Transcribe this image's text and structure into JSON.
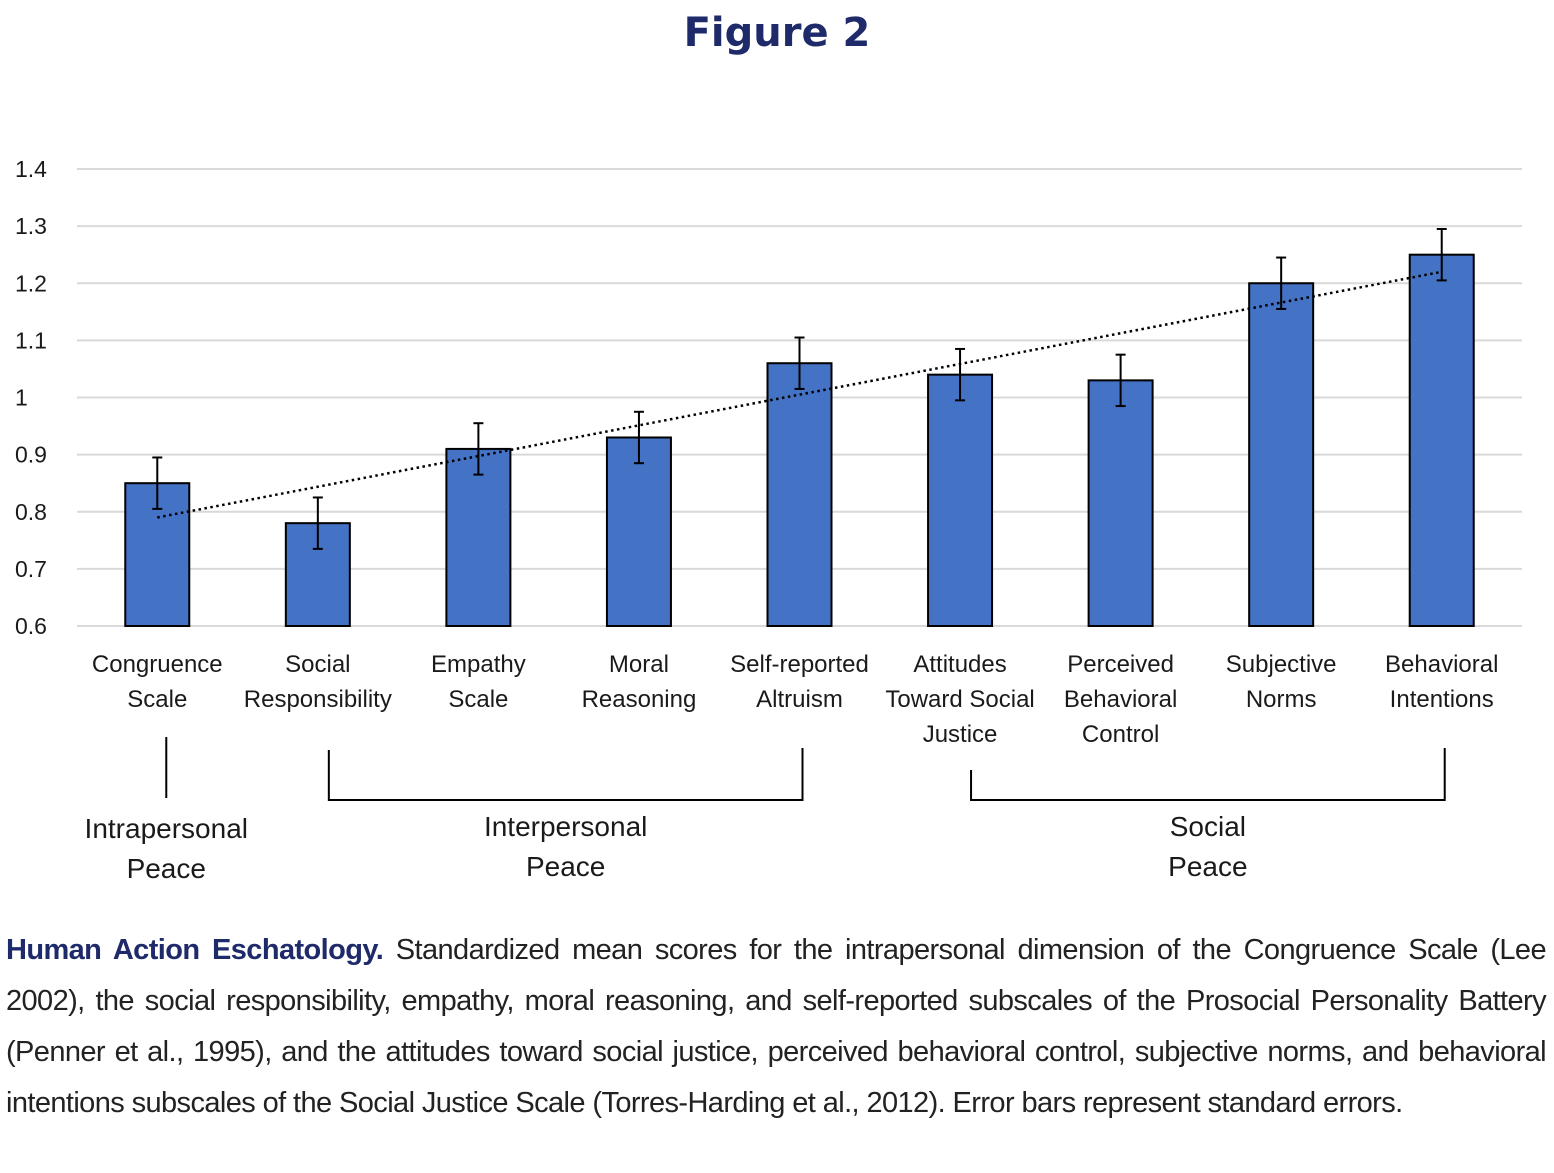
{
  "figure_title": "Figure 2",
  "caption": {
    "heading": "Human Action Eschatology.",
    "text": " Standardized mean scores for the intrapersonal dimension of the Congruence Scale (Lee 2002), the social responsibility, empathy, moral reasoning, and self-reported subscales of the Prosocial Personality Battery (Penner et al., 1995), and the attitudes toward social justice, perceived behavioral control, subjective norms, and behavioral intentions subscales of the Social Justice Scale (Torres-Harding et al., 2012). Error bars represent standard errors."
  },
  "colors": {
    "bar": "#4472c4",
    "bar_edge": "#000000",
    "grid": "#d9d9d9",
    "title": "#1f2a6b"
  },
  "chart_data": {
    "type": "bar",
    "title": "",
    "xlabel": "",
    "ylabel": "",
    "ylim": [
      0.6,
      1.4
    ],
    "yticks": [
      "0.6",
      "0.7",
      "0.8",
      "0.9",
      "1",
      "1.1",
      "1.2",
      "1.3",
      "1.4"
    ],
    "grid": true,
    "categories": [
      [
        "Congruence",
        "Scale"
      ],
      [
        "Social",
        "Responsibility"
      ],
      [
        "Empathy",
        "Scale"
      ],
      [
        "Moral",
        "Reasoning"
      ],
      [
        "Self-reported",
        "Altruism"
      ],
      [
        "Attitudes",
        "Toward Social",
        "Justice"
      ],
      [
        "Perceived",
        "Behavioral",
        "Control"
      ],
      [
        "Subjective",
        "Norms"
      ],
      [
        "Behavioral",
        "Intentions"
      ]
    ],
    "values": [
      0.85,
      0.78,
      0.91,
      0.93,
      1.06,
      1.04,
      1.03,
      1.2,
      1.25
    ],
    "errors": [
      0.045,
      0.045,
      0.045,
      0.045,
      0.045,
      0.045,
      0.045,
      0.045,
      0.045
    ],
    "trendline": {
      "style": "dotted linear",
      "start": 0.79,
      "end": 1.22
    },
    "groups": [
      {
        "label": [
          "Intrapersonal",
          "Peace"
        ],
        "from": 0,
        "to": 0
      },
      {
        "label": [
          "Interpersonal",
          "Peace"
        ],
        "from": 1,
        "to": 4
      },
      {
        "label": [
          "Social",
          "Peace"
        ],
        "from": 5,
        "to": 8
      }
    ]
  }
}
